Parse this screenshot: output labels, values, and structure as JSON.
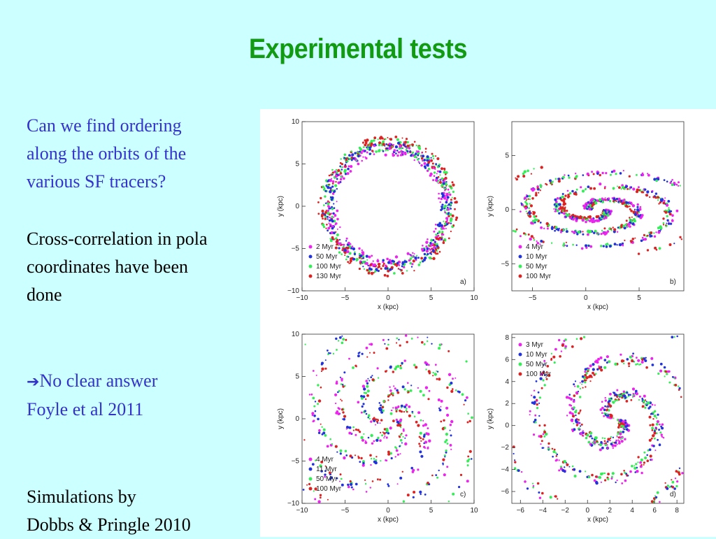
{
  "slide": {
    "title": "Experimental tests",
    "para1": "Can we find ordering\nalong the orbits of the\nvarious SF tracers?",
    "para2": "Cross-correlation in pola\ncoordinates have been\ndone",
    "para3_arrow": "➔",
    "para3_text": "No clear answer",
    "para4": "Foyle et al 2011",
    "para5": "Simulations by\nDobbs & Pringle 2010",
    "colors": {
      "title": "#129a12",
      "blue_text": "#3333cc",
      "background": "#ccffff"
    }
  },
  "figure": {
    "xlabel": "x (kpc)",
    "ylabel": "y (kpc)",
    "series_colors": [
      "#ee22ee",
      "#2233dd",
      "#33ee55",
      "#dd2222"
    ],
    "panels": [
      {
        "tag": "a)",
        "legend": [
          "2 Myr",
          "50 Myr",
          "100 Myr",
          "130 Myr"
        ],
        "xticks": [
          "−10",
          "−5",
          "0",
          "5",
          "10"
        ],
        "yticks": [
          "10",
          "5",
          "0",
          "−5",
          "−10"
        ]
      },
      {
        "tag": "b)",
        "legend": [
          "4 Myr",
          "10 Myr",
          "50 Myr",
          "100 Myr"
        ],
        "xticks": [
          "−5",
          "0",
          "5"
        ],
        "yticks": [
          "5",
          "0",
          "−5"
        ]
      },
      {
        "tag": "c)",
        "legend": [
          "4 Myr",
          "11 Myr",
          "50 Myr",
          "100 Myr"
        ],
        "xticks": [
          "−10",
          "−5",
          "0",
          "5",
          "10"
        ],
        "yticks": [
          "10",
          "5",
          "0",
          "−5",
          "−10"
        ]
      },
      {
        "tag": "d)",
        "legend": [
          "3 Myr",
          "10 Myr",
          "50 Myr",
          "100 Myr"
        ],
        "xticks": [
          "−6",
          "−4",
          "−2",
          "0",
          "2",
          "4",
          "6",
          "8"
        ],
        "yticks": [
          "8",
          "6",
          "4",
          "2",
          "0",
          "−2",
          "−4",
          "−6"
        ]
      }
    ]
  }
}
